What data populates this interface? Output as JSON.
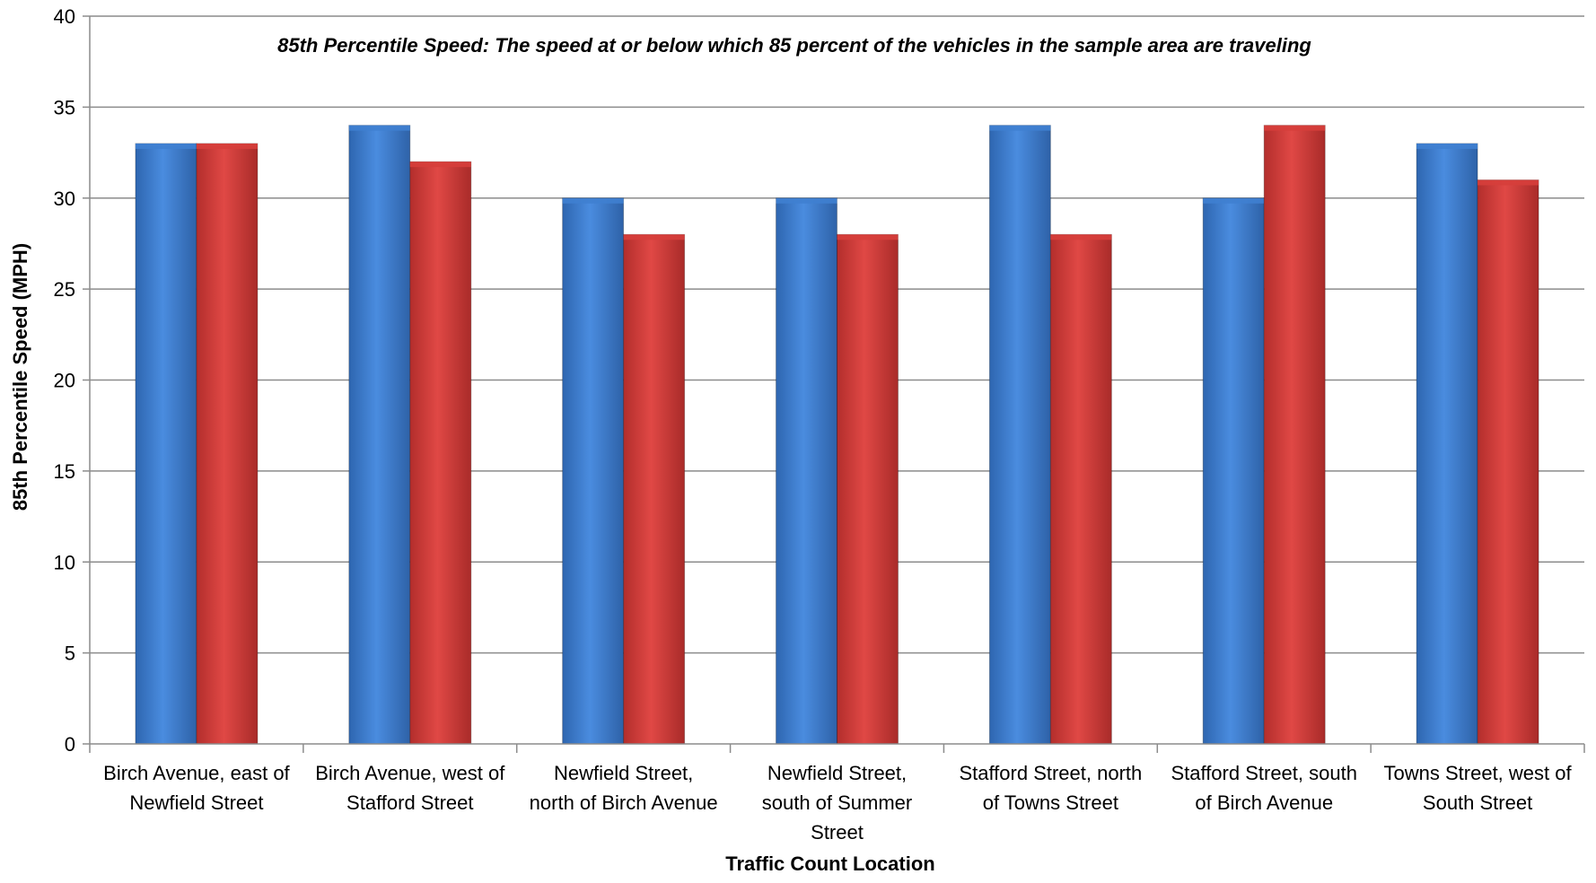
{
  "chart_data": {
    "type": "bar",
    "title": "",
    "annotation": "85th Percentile Speed: The speed at or below which 85 percent of the vehicles  in the sample area are traveling",
    "xlabel": "Traffic Count Location",
    "ylabel": "85th Percentile Speed (MPH)",
    "ylim": [
      0,
      40
    ],
    "yticks": [
      0,
      5,
      10,
      15,
      20,
      25,
      30,
      35,
      40
    ],
    "grid": true,
    "legend": "none",
    "categories": [
      [
        "Birch Avenue, east of",
        "Newfield Street"
      ],
      [
        "Birch Avenue, west of",
        "Stafford Street"
      ],
      [
        "Newfield Street,",
        "north of Birch Avenue"
      ],
      [
        "Newfield Street,",
        "south of Summer",
        "Street"
      ],
      [
        "Stafford Street, north",
        "of Towns Street"
      ],
      [
        "Stafford Street, south",
        "of Birch Avenue"
      ],
      [
        "Towns Street, west of",
        "South Street"
      ]
    ],
    "series": [
      {
        "color": "#3F7FD0",
        "values": [
          33,
          34,
          30,
          30,
          34,
          30,
          33
        ]
      },
      {
        "color": "#D63E3B",
        "values": [
          33,
          32,
          28,
          28,
          28,
          34,
          31
        ]
      }
    ]
  }
}
